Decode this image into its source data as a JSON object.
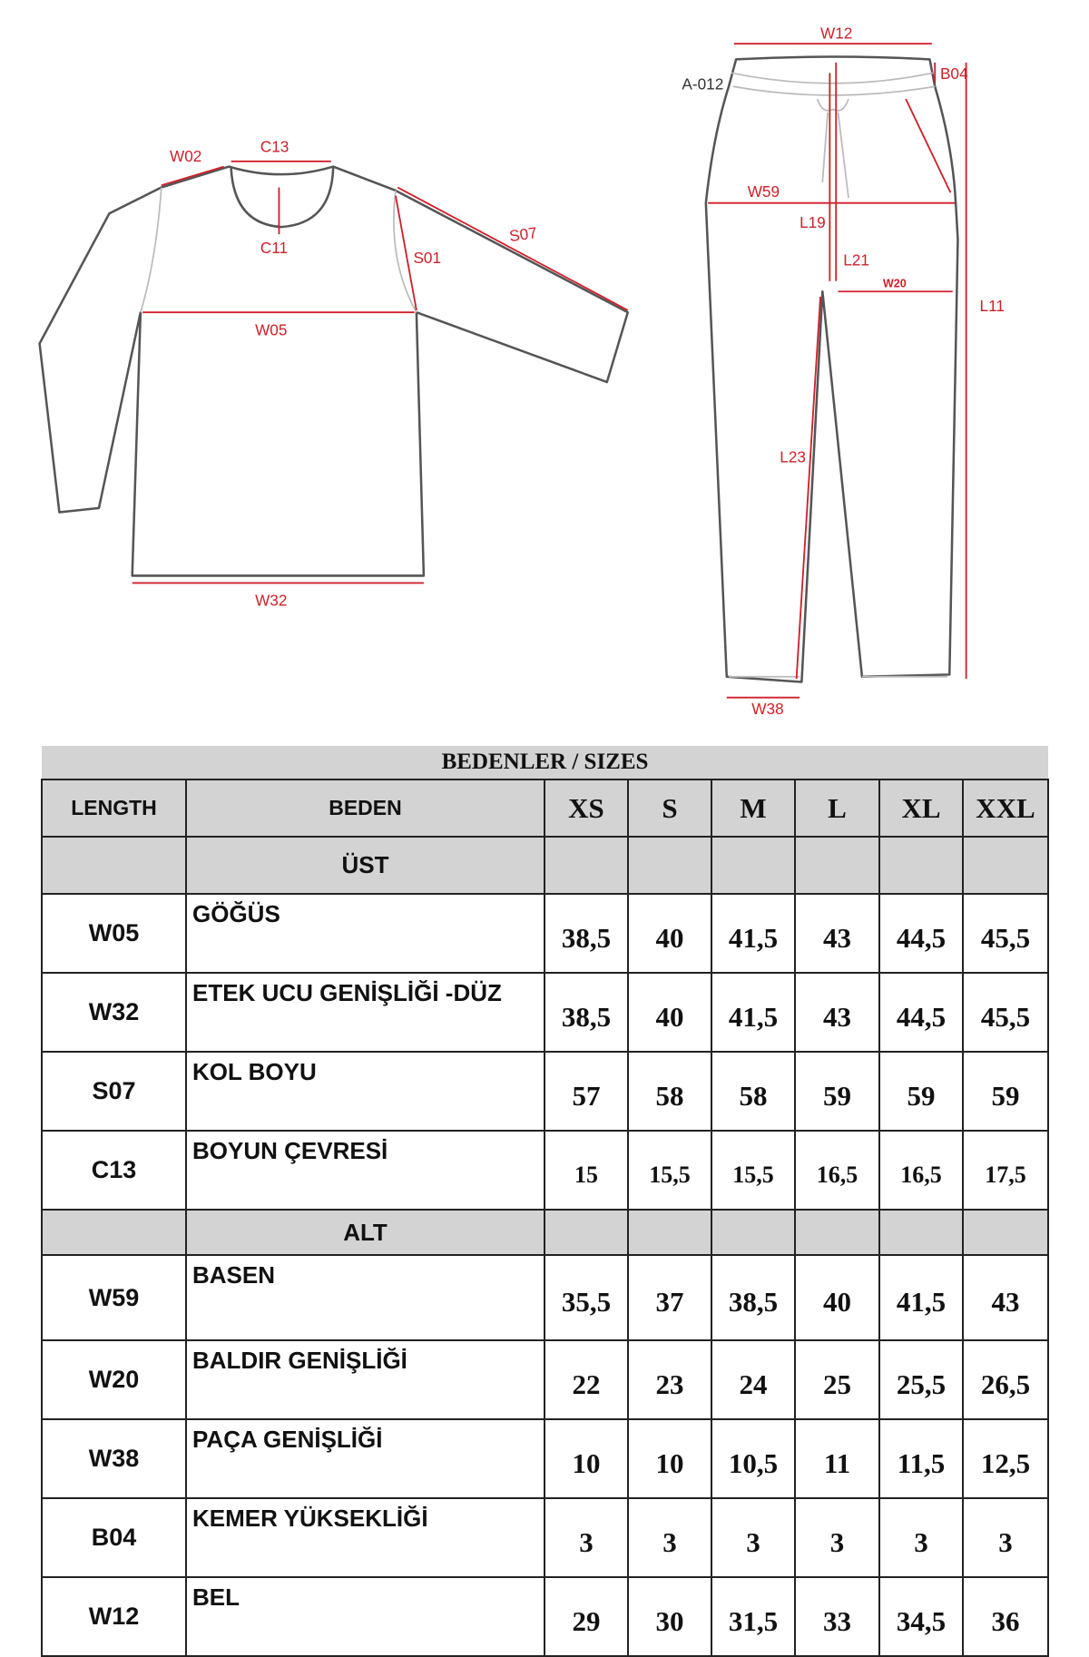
{
  "diagram": {
    "top_labels": {
      "W02": "W02",
      "C13": "C13",
      "C11": "C11",
      "S01": "S01",
      "S07": "S07",
      "W05": "W05",
      "W32": "W32"
    },
    "bottom_labels": {
      "W12": "W12",
      "A012": "A-012",
      "B04": "B04",
      "W59": "W59",
      "L19": "L19",
      "L21": "L21",
      "W20": "W20",
      "L11": "L11",
      "L23": "L23",
      "W38": "W38"
    },
    "measure_color": "#d0202a"
  },
  "table": {
    "title": "BEDENLER / SIZES",
    "headers": {
      "length": "LENGTH",
      "beden": "BEDEN",
      "sizes": [
        "XS",
        "S",
        "M",
        "L",
        "XL",
        "XXL"
      ]
    },
    "sections": [
      {
        "label": "ÜST",
        "rows": [
          {
            "code": "W05",
            "name": "GÖĞÜS",
            "values": [
              "38,5",
              "40",
              "41,5",
              "43",
              "44,5",
              "45,5"
            ]
          },
          {
            "code": "W32",
            "name": "ETEK UCU GENİŞLİĞİ -DÜZ",
            "values": [
              "38,5",
              "40",
              "41,5",
              "43",
              "44,5",
              "45,5"
            ]
          },
          {
            "code": "S07",
            "name": "KOL BOYU",
            "values": [
              "57",
              "58",
              "58",
              "59",
              "59",
              "59"
            ]
          },
          {
            "code": "C13",
            "name": "BOYUN ÇEVRESİ",
            "values": [
              "15",
              "15,5",
              "15,5",
              "16,5",
              "16,5",
              "17,5"
            ]
          }
        ]
      },
      {
        "label": "ALT",
        "rows": [
          {
            "code": "W59",
            "name": "BASEN",
            "values": [
              "35,5",
              "37",
              "38,5",
              "40",
              "41,5",
              "43"
            ]
          },
          {
            "code": "W20",
            "name": "BALDIR GENİŞLİĞİ",
            "values": [
              "22",
              "23",
              "24",
              "25",
              "25,5",
              "26,5"
            ]
          },
          {
            "code": "W38",
            "name": "PAÇA GENİŞLİĞİ",
            "values": [
              "10",
              "10",
              "10,5",
              "11",
              "11,5",
              "12,5"
            ]
          },
          {
            "code": "B04",
            "name": "KEMER YÜKSEKLİĞİ",
            "values": [
              "3",
              "3",
              "3",
              "3",
              "3",
              "3"
            ]
          },
          {
            "code": "W12",
            "name": "BEL",
            "values": [
              "29",
              "30",
              "31,5",
              "33",
              "34,5",
              "36"
            ]
          }
        ]
      }
    ]
  }
}
